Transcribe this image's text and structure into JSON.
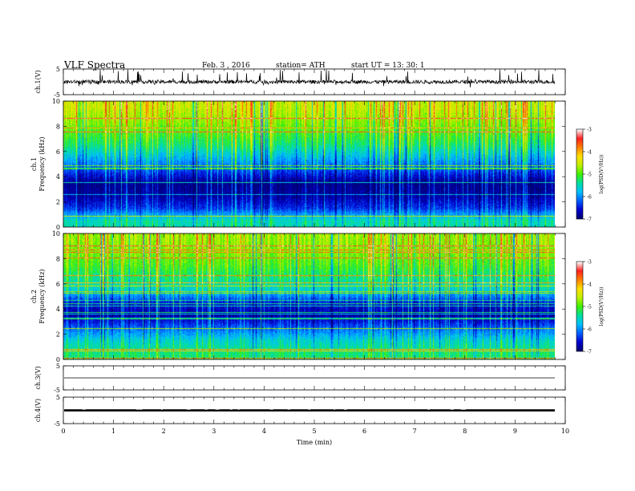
{
  "header": {
    "title": "VLF Spectra",
    "date": "Feb. 3 , 2016",
    "station": "station= ATH",
    "start": "start UT = 13: 30: 1"
  },
  "chart_data": [
    {
      "type": "line",
      "panel": "ch1-waveform",
      "ylabel": "ch.1(V)",
      "ylim": [
        -5,
        5
      ],
      "yticks": [
        "5",
        "-5"
      ],
      "xlim": [
        0,
        10
      ],
      "baseline": 0,
      "color": "#000000"
    },
    {
      "type": "heatmap",
      "panel": "ch1-spectrogram",
      "ylabel": "ch.1\nFrequency (kHz)",
      "ylim": [
        0,
        10
      ],
      "yticks": [
        "0",
        "2",
        "4",
        "6",
        "8",
        "10"
      ],
      "xlim": [
        0,
        9.8
      ],
      "colorbar": {
        "label": "log(PSD(V²/Hz))",
        "range": [
          -7,
          -3
        ],
        "ticks": [
          "-3",
          "-4",
          "-5",
          "-6",
          "-7"
        ]
      },
      "profile_log_psd": [
        {
          "freq_khz": 0.5,
          "value": -5.5
        },
        {
          "freq_khz": 1.5,
          "value": -6.4
        },
        {
          "freq_khz": 2.5,
          "value": -6.8
        },
        {
          "freq_khz": 3.5,
          "value": -6.9
        },
        {
          "freq_khz": 4.5,
          "value": -6.3
        },
        {
          "freq_khz": 5.5,
          "value": -5.8
        },
        {
          "freq_khz": 6.5,
          "value": -5.3
        },
        {
          "freq_khz": 7.5,
          "value": -5.0
        },
        {
          "freq_khz": 8.5,
          "value": -4.7
        },
        {
          "freq_khz": 9.5,
          "value": -4.5
        }
      ]
    },
    {
      "type": "heatmap",
      "panel": "ch2-spectrogram",
      "ylabel": "ch.2\nFrequency (kHz)",
      "ylim": [
        0,
        10
      ],
      "yticks": [
        "0",
        "2",
        "4",
        "6",
        "8",
        "10"
      ],
      "xlim": [
        0,
        9.8
      ],
      "colorbar": {
        "label": "log(PSD(V²/Hz))",
        "range": [
          -7,
          -3
        ],
        "ticks": [
          "-3",
          "-4",
          "-5",
          "-6",
          "-7"
        ]
      },
      "profile_log_psd": [
        {
          "freq_khz": 0.5,
          "value": -5.3
        },
        {
          "freq_khz": 1.5,
          "value": -5.6
        },
        {
          "freq_khz": 2.5,
          "value": -6.2
        },
        {
          "freq_khz": 3.5,
          "value": -6.8
        },
        {
          "freq_khz": 4.5,
          "value": -6.5
        },
        {
          "freq_khz": 5.5,
          "value": -5.6
        },
        {
          "freq_khz": 6.5,
          "value": -5.3
        },
        {
          "freq_khz": 7.5,
          "value": -5.0
        },
        {
          "freq_khz": 8.5,
          "value": -4.8
        },
        {
          "freq_khz": 9.5,
          "value": -4.7
        }
      ]
    },
    {
      "type": "line",
      "panel": "ch3-waveform",
      "ylabel": "ch.3(V)",
      "ylim": [
        -5,
        5
      ],
      "yticks": [
        "5",
        "-5"
      ],
      "xlim": [
        0,
        10
      ],
      "baseline": 0
    },
    {
      "type": "line",
      "panel": "ch4-waveform",
      "ylabel": "ch.4(V)",
      "ylim": [
        -5,
        5
      ],
      "yticks": [
        "5",
        "-5"
      ],
      "xlim": [
        0,
        10
      ],
      "baseline": 0,
      "amplitude": 0.4
    }
  ],
  "xaxis": {
    "label": "Time (min)",
    "ticks": [
      "0",
      "1",
      "2",
      "3",
      "4",
      "5",
      "6",
      "7",
      "8",
      "9",
      "10"
    ],
    "range": [
      0,
      10
    ]
  },
  "colors": {
    "colormap": [
      "#000070",
      "#0000d0",
      "#0060ff",
      "#00c0ff",
      "#00e0a0",
      "#40f000",
      "#c0f000",
      "#ffe000",
      "#ff8000",
      "#ff2020",
      "#ffffff"
    ]
  }
}
